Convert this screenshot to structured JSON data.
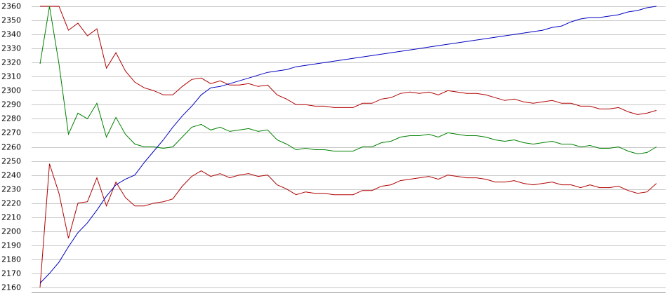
{
  "chart_data": {
    "type": "line",
    "categories": [
      null,
      null,
      null,
      null,
      null,
      null,
      null,
      null,
      null,
      null,
      null,
      null,
      null,
      null,
      null,
      null,
      null,
      null,
      null,
      null,
      null,
      null,
      null,
      null,
      null,
      null,
      null,
      null,
      null,
      null,
      null,
      null,
      null,
      null,
      null,
      null,
      null,
      null,
      null,
      null,
      null,
      null,
      null,
      null,
      null,
      null,
      null,
      null,
      null,
      null,
      null,
      null,
      null,
      null,
      null,
      null,
      null,
      null,
      null,
      null,
      null,
      null,
      null,
      null,
      null,
      null
    ],
    "series": [
      {
        "color": "#b00000",
        "values": [
          2360,
          2360,
          2360,
          2343,
          2348,
          2339,
          2344,
          2316,
          2327,
          2314,
          2306,
          2302,
          2300,
          2297,
          2297,
          2303,
          2308,
          2309,
          2305,
          2307,
          2304,
          2304,
          2305,
          2303,
          2304,
          2297,
          2294,
          2290,
          2290,
          2289,
          2289,
          2288,
          2288,
          2288,
          2291,
          2291,
          2294,
          2295,
          2298,
          2299,
          2298,
          2299,
          2297,
          2300,
          2299,
          2298,
          2298,
          2297,
          2295,
          2293,
          2294,
          2292,
          2291,
          2292,
          2293,
          2291,
          2291,
          2289,
          2289,
          2287,
          2287,
          2288,
          2285,
          2283,
          2284,
          2286
        ]
      },
      {
        "color": "#008000",
        "values": [
          2319,
          2360,
          2319,
          2269,
          2284,
          2280,
          2291,
          2267,
          2281,
          2269,
          2262,
          2260,
          2260,
          2259,
          2260,
          2267,
          2274,
          2276,
          2272,
          2274,
          2271,
          2272,
          2273,
          2271,
          2272,
          2265,
          2262,
          2258,
          2259,
          2258,
          2258,
          2257,
          2257,
          2257,
          2260,
          2260,
          2263,
          2264,
          2267,
          2268,
          2268,
          2269,
          2267,
          2270,
          2269,
          2268,
          2268,
          2267,
          2265,
          2264,
          2265,
          2263,
          2262,
          2263,
          2264,
          2262,
          2262,
          2260,
          2261,
          2259,
          2259,
          2260,
          2257,
          2255,
          2256,
          2260
        ]
      },
      {
        "color": "#b00000",
        "values": [
          2160,
          2248,
          2227,
          2195,
          2220,
          2221,
          2238,
          2218,
          2235,
          2224,
          2218,
          2218,
          2220,
          2221,
          2223,
          2232,
          2239,
          2243,
          2239,
          2241,
          2238,
          2240,
          2241,
          2239,
          2240,
          2233,
          2230,
          2226,
          2228,
          2227,
          2227,
          2226,
          2226,
          2226,
          2229,
          2229,
          2232,
          2233,
          2236,
          2237,
          2238,
          2239,
          2237,
          2240,
          2239,
          2238,
          2238,
          2237,
          2235,
          2235,
          2236,
          2234,
          2233,
          2234,
          2235,
          2233,
          2233,
          2231,
          2233,
          2231,
          2231,
          2232,
          2229,
          2227,
          2228,
          2234
        ]
      },
      {
        "color": "#0000c0",
        "values": [
          2163,
          2170,
          2178,
          2189,
          2199,
          2206,
          2215,
          2225,
          2233,
          2237,
          2240,
          2249,
          2257,
          2265,
          2274,
          2282,
          2289,
          2297,
          2302,
          2303,
          2305,
          2307,
          2309,
          2311,
          2313,
          2314,
          2315,
          2317,
          2318,
          2319,
          2320,
          2321,
          2322,
          2323,
          2324,
          2325,
          2326,
          2327,
          2328,
          2329,
          2330,
          2331,
          2332,
          2333,
          2334,
          2335,
          2336,
          2337,
          2338,
          2339,
          2340,
          2341,
          2342,
          2343,
          2345,
          2346,
          2349,
          2351,
          2352,
          2352,
          2353,
          2354,
          2356,
          2357,
          2359,
          2360
        ]
      }
    ],
    "ylim": [
      2160,
      2360
    ],
    "yticks": [
      2160,
      2170,
      2180,
      2190,
      2200,
      2210,
      2220,
      2230,
      2240,
      2250,
      2260,
      2270,
      2280,
      2290,
      2300,
      2310,
      2320,
      2330,
      2340,
      2350,
      2360
    ],
    "grid": true
  }
}
